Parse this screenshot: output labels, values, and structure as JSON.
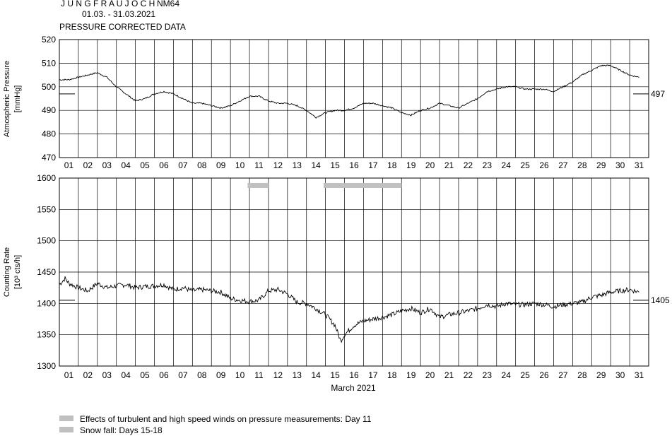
{
  "header": {
    "station": "J U N G F R A U J O C H",
    "code": "NM64",
    "period": "01.03. - 31.03.2021",
    "subtitle": "PRESSURE CORRECTED DATA"
  },
  "footer": {
    "month_label": "March 2021",
    "legend": [
      {
        "text": "Effects of turbulent and high speed winds on pressure measurements: Day 11",
        "color": "#c0c0c0"
      },
      {
        "text": "Snow fall: Days 15-18",
        "color": "#c0c0c0"
      }
    ]
  },
  "chart_data": [
    {
      "type": "line",
      "id": "pressure",
      "ylabel_line1": "Atmospheric Pressure",
      "ylabel_line2": "[mmHg]",
      "ylim": [
        470,
        520
      ],
      "yticks": [
        470,
        480,
        490,
        500,
        510,
        520
      ],
      "xlim": [
        1,
        32
      ],
      "x_tick_labels": [
        "01",
        "02",
        "03",
        "04",
        "05",
        "06",
        "07",
        "08",
        "09",
        "10",
        "11",
        "12",
        "13",
        "14",
        "15",
        "16",
        "17",
        "18",
        "19",
        "20",
        "21",
        "22",
        "23",
        "24",
        "25",
        "26",
        "27",
        "28",
        "29",
        "30",
        "31"
      ],
      "reference_value": 497,
      "reference_label": "497",
      "grid": true,
      "series": [
        {
          "x": [
            1.0,
            1.5,
            2.0,
            2.5,
            3.0,
            3.5,
            4.0,
            4.5,
            5.0,
            5.5,
            6.0,
            6.5,
            7.0,
            7.5,
            8.0,
            8.5,
            9.0,
            9.5,
            10.0,
            10.5,
            11.0,
            11.5,
            12.0,
            12.5,
            13.0,
            13.5,
            14.0,
            14.5,
            15.0,
            15.5,
            16.0,
            16.5,
            17.0,
            17.5,
            18.0,
            18.5,
            19.0,
            19.5,
            20.0,
            20.5,
            21.0,
            21.5,
            22.0,
            22.5,
            23.0,
            23.5,
            24.0,
            24.5,
            25.0,
            25.5,
            26.0,
            26.5,
            27.0,
            27.5,
            28.0,
            28.5,
            29.0,
            29.5,
            30.0,
            30.5,
            31.0,
            31.5
          ],
          "values": [
            503,
            503,
            504,
            505,
            506,
            504,
            500,
            497,
            494,
            495,
            497,
            498,
            497,
            495,
            493,
            493,
            492,
            491,
            492,
            494,
            496,
            496,
            494,
            493,
            493,
            492,
            490,
            487,
            489,
            490,
            490,
            491,
            493,
            493,
            492,
            491,
            489,
            488,
            490,
            491,
            493,
            492,
            491,
            493,
            495,
            498,
            499,
            500,
            500,
            499,
            499,
            499,
            498,
            500,
            502,
            505,
            507,
            509,
            509,
            507,
            505,
            504
          ]
        }
      ]
    },
    {
      "type": "line",
      "id": "counting-rate",
      "ylabel_line1": "Counting Rate",
      "ylabel_line2": "[10³ cts/h]",
      "ylim": [
        1300,
        1600
      ],
      "yticks": [
        1300,
        1350,
        1400,
        1450,
        1500,
        1550,
        1600
      ],
      "xlim": [
        1,
        32
      ],
      "x_tick_labels": [
        "01",
        "02",
        "03",
        "04",
        "05",
        "06",
        "07",
        "08",
        "09",
        "10",
        "11",
        "12",
        "13",
        "14",
        "15",
        "16",
        "17",
        "18",
        "19",
        "20",
        "21",
        "22",
        "23",
        "24",
        "25",
        "26",
        "27",
        "28",
        "29",
        "30",
        "31"
      ],
      "reference_value": 1405,
      "reference_label": "1405",
      "grid": true,
      "marker_bars": [
        {
          "from": 10.9,
          "to": 12.0,
          "color": "#c0c0c0"
        },
        {
          "from": 14.9,
          "to": 19.0,
          "color": "#c0c0c0"
        }
      ],
      "series": [
        {
          "x": [
            1.0,
            1.3,
            1.5,
            2.0,
            2.5,
            3.0,
            3.5,
            4.0,
            4.5,
            5.0,
            5.5,
            6.0,
            6.5,
            7.0,
            7.5,
            8.0,
            8.5,
            9.0,
            9.5,
            10.0,
            10.5,
            11.0,
            11.5,
            12.0,
            12.5,
            13.0,
            13.5,
            14.0,
            14.5,
            15.0,
            15.5,
            15.8,
            16.0,
            16.5,
            17.0,
            17.5,
            18.0,
            18.5,
            19.0,
            19.5,
            20.0,
            20.5,
            21.0,
            21.5,
            22.0,
            22.5,
            23.0,
            23.5,
            24.0,
            24.5,
            25.0,
            25.5,
            26.0,
            26.5,
            27.0,
            27.5,
            28.0,
            28.5,
            29.0,
            29.5,
            30.0,
            30.5,
            31.0,
            31.5
          ],
          "values": [
            1430,
            1440,
            1432,
            1425,
            1420,
            1432,
            1425,
            1428,
            1430,
            1425,
            1427,
            1428,
            1430,
            1422,
            1425,
            1420,
            1422,
            1420,
            1418,
            1408,
            1405,
            1403,
            1405,
            1420,
            1422,
            1415,
            1402,
            1400,
            1392,
            1382,
            1365,
            1340,
            1350,
            1365,
            1372,
            1375,
            1378,
            1382,
            1388,
            1392,
            1385,
            1392,
            1378,
            1382,
            1385,
            1388,
            1392,
            1398,
            1395,
            1400,
            1398,
            1398,
            1400,
            1398,
            1395,
            1398,
            1400,
            1402,
            1410,
            1413,
            1418,
            1420,
            1422,
            1418
          ]
        }
      ]
    }
  ]
}
